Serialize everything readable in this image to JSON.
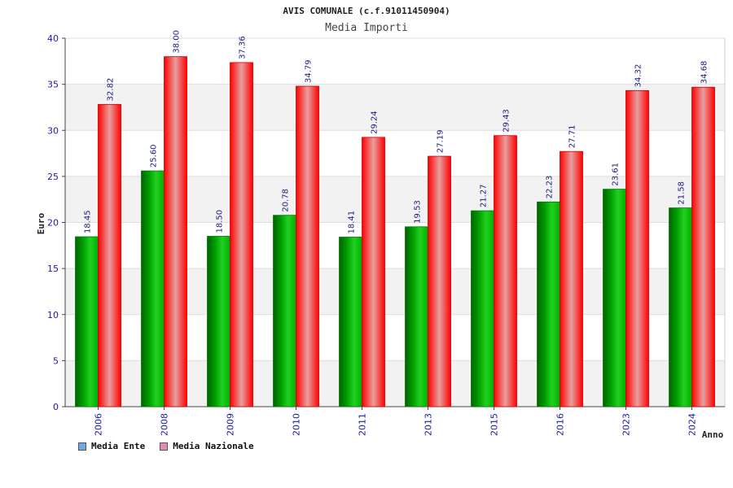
{
  "chart_data": {
    "type": "bar",
    "title": "AVIS COMUNALE (c.f.91011450904)",
    "subtitle": "Media Importi",
    "xlabel": "Anno",
    "ylabel": "Euro",
    "ylim": [
      0,
      40
    ],
    "yticks": [
      0,
      5,
      10,
      15,
      20,
      25,
      30,
      35,
      40
    ],
    "grid": true,
    "legend_position": "bottom-left",
    "categories": [
      "2006",
      "2008",
      "2009",
      "2010",
      "2011",
      "2013",
      "2015",
      "2016",
      "2023",
      "2024"
    ],
    "series": [
      {
        "name": "Media Ente",
        "values": [
          18.45,
          25.6,
          18.5,
          20.78,
          18.41,
          19.53,
          21.27,
          22.23,
          23.61,
          21.58
        ],
        "labels": [
          "18.45",
          "25.60",
          "18.50",
          "20.78",
          "18.41",
          "19.53",
          "21.27",
          "22.23",
          "23.61",
          "21.58"
        ],
        "color": "#00b400",
        "legend_color": "#6fa8e8"
      },
      {
        "name": "Media Nazionale",
        "values": [
          32.82,
          38.0,
          37.36,
          34.79,
          29.24,
          27.19,
          29.43,
          27.71,
          34.32,
          34.68
        ],
        "labels": [
          "32.82",
          "38.00",
          "37.36",
          "34.79",
          "29.24",
          "27.19",
          "29.43",
          "27.71",
          "34.32",
          "34.68"
        ],
        "color": "#ff1a1a",
        "legend_color": "#e58ab4"
      }
    ]
  }
}
